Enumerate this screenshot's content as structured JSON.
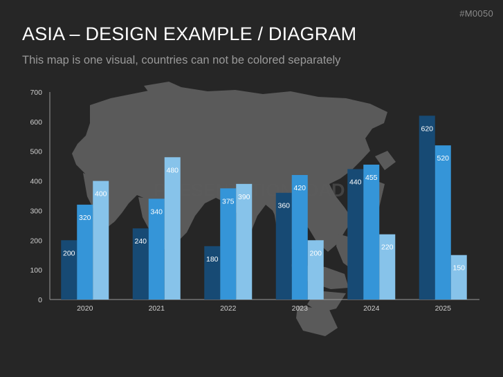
{
  "slide": {
    "code": "#M0050",
    "title": "ASIA – DESIGN EXAMPLE / DIAGRAM",
    "subtitle": "This map is one visual, countries can not be colored separately",
    "watermark": "PRESENTATIONLOAD"
  },
  "colors": {
    "background": "#262626",
    "map": "#5a5a5a",
    "series": [
      "#174a74",
      "#3595d8",
      "#87c3ea"
    ]
  },
  "chart_data": {
    "type": "bar",
    "categories": [
      "2020",
      "2021",
      "2022",
      "2023",
      "2024",
      "2025"
    ],
    "series": [
      {
        "values": [
          200,
          240,
          180,
          360,
          440,
          620
        ]
      },
      {
        "values": [
          320,
          340,
          375,
          420,
          455,
          520
        ]
      },
      {
        "values": [
          400,
          480,
          390,
          200,
          220,
          150
        ]
      }
    ],
    "yticks": [
      0,
      100,
      200,
      300,
      400,
      500,
      600,
      700
    ],
    "ylim": [
      0,
      700
    ],
    "grid": false,
    "legend": "none"
  }
}
